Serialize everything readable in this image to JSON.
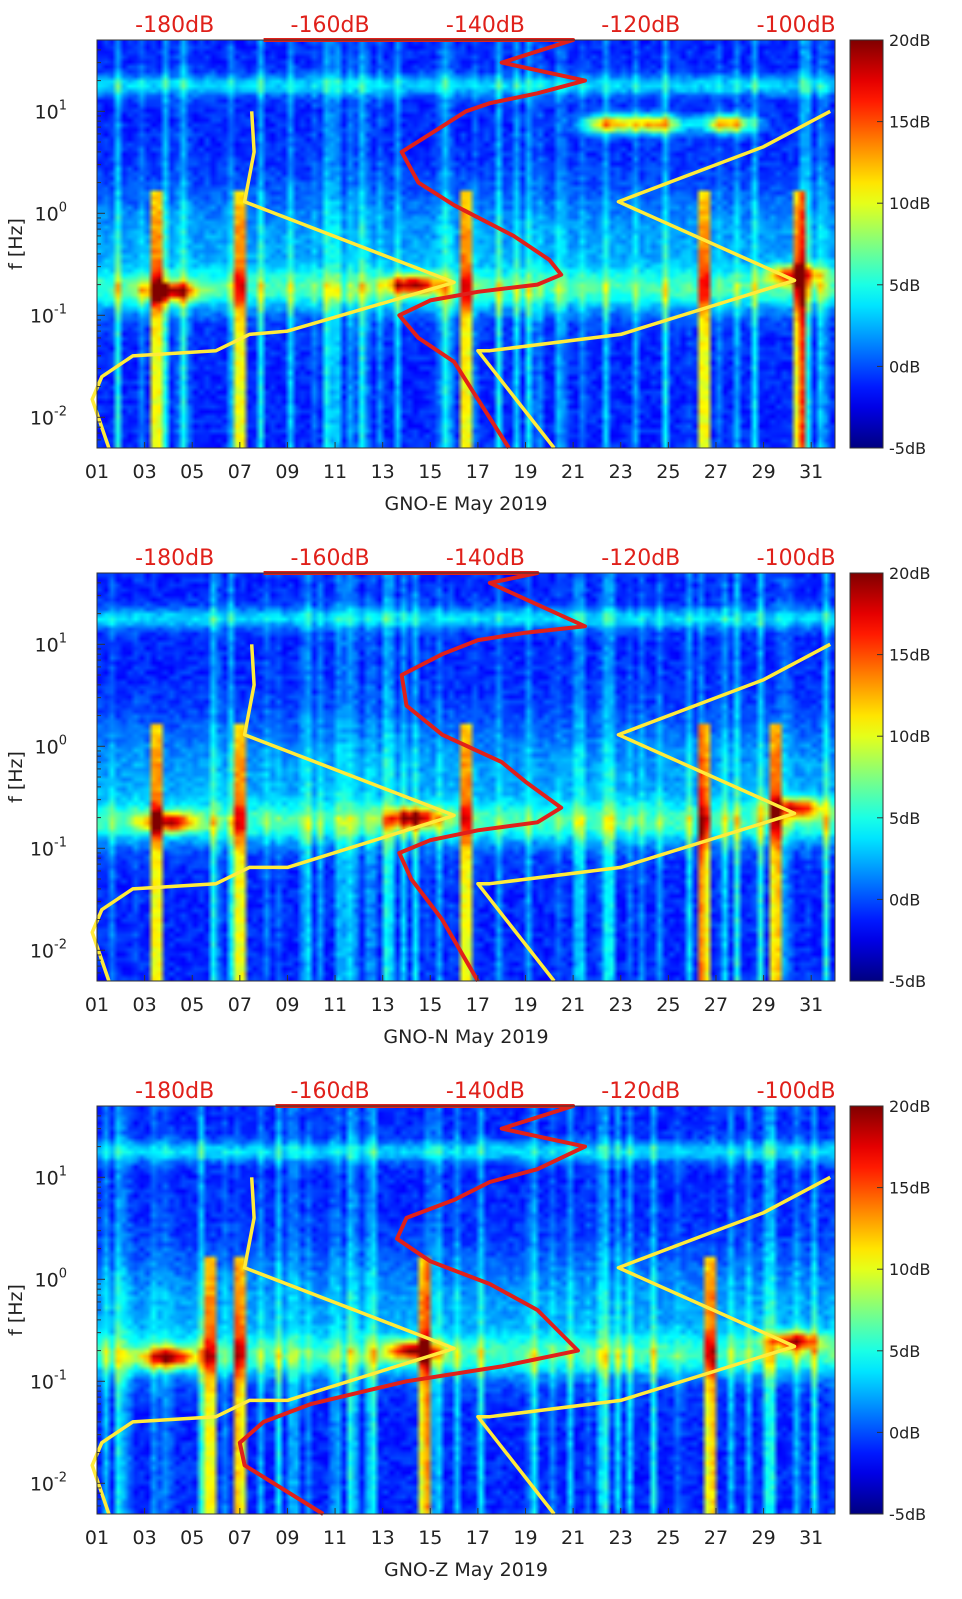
{
  "figure": {
    "colors": {
      "noise_model_line": "#ffeb3b",
      "psd_line": "#e0201a",
      "db_axis_text": "#e0201a",
      "axis_text": "#222222"
    },
    "colorbar": {
      "ticks": [
        "20dB",
        "15dB",
        "10dB",
        "5dB",
        "0dB",
        "-5dB"
      ],
      "range": [
        -5,
        20
      ],
      "colormap": "jet"
    }
  },
  "chart_data": [
    {
      "type": "heatmap",
      "title": "",
      "xlabel": "GNO-E May 2019",
      "ylabel": "f [Hz]",
      "x_ticks": [
        "01",
        "03",
        "05",
        "07",
        "09",
        "11",
        "13",
        "15",
        "17",
        "19",
        "21",
        "23",
        "25",
        "27",
        "29",
        "31"
      ],
      "x_range": [
        1,
        32
      ],
      "y_ticks": [
        "10-2",
        "10-1",
        "100",
        "101"
      ],
      "y_range_hz": [
        0.005,
        50
      ],
      "y_scale": "log",
      "top_axis_ticks": [
        "-180dB",
        "-160dB",
        "-140dB",
        "-120dB",
        "-100dB"
      ],
      "top_axis_range_db": [
        -190,
        -95
      ],
      "colorbar_label_range": [
        -5,
        20
      ],
      "spectrogram": {
        "microseism_peak_hz": 0.18,
        "high_freq_band_hz": [
          15,
          22
        ],
        "hot_spots": [
          {
            "day": 4,
            "f": 0.17
          },
          {
            "day": 14.3,
            "f": 0.2
          },
          {
            "day": 30.3,
            "f": 0.25
          },
          {
            "day": 22.5,
            "f": 7.5
          },
          {
            "day": 24.5,
            "f": 7.5
          },
          {
            "day": 27.5,
            "f": 7.5
          }
        ],
        "vertical_streak_days": [
          26.5,
          30.5,
          16.5,
          3.5,
          7
        ]
      },
      "series": [
        {
          "type": "line",
          "role": "noise-model-low",
          "points": [
            [
              7.5,
              10
            ],
            [
              7.6,
              4
            ],
            [
              7.2,
              1.3
            ],
            [
              16.0,
              0.21
            ],
            [
              9.0,
              0.07
            ],
            [
              7.4,
              0.065
            ],
            [
              6.0,
              0.045
            ],
            [
              2.5,
              0.04
            ],
            [
              1.2,
              0.025
            ],
            [
              0.8,
              0.015
            ],
            [
              1.5,
              0.005
            ]
          ]
        },
        {
          "type": "line",
          "role": "noise-model-high",
          "points": [
            [
              31.8,
              10
            ],
            [
              29.0,
              4.5
            ],
            [
              22.9,
              1.3
            ],
            [
              30.3,
              0.22
            ],
            [
              23.0,
              0.065
            ],
            [
              17.5,
              0.045
            ],
            [
              17.0,
              0.045
            ],
            [
              20.2,
              0.005
            ]
          ]
        },
        {
          "type": "line",
          "role": "psd-profile",
          "points": [
            [
              8.0,
              50
            ],
            [
              21.0,
              50
            ],
            [
              18.0,
              30
            ],
            [
              21.5,
              20
            ],
            [
              19.5,
              15
            ],
            [
              17.5,
              12
            ],
            [
              16.5,
              10
            ],
            [
              15.0,
              6
            ],
            [
              13.8,
              4
            ],
            [
              14.5,
              2
            ],
            [
              16.0,
              1.2
            ],
            [
              18.5,
              0.6
            ],
            [
              20.0,
              0.35
            ],
            [
              20.5,
              0.25
            ],
            [
              19.5,
              0.2
            ],
            [
              17.0,
              0.17
            ],
            [
              15.0,
              0.14
            ],
            [
              13.7,
              0.1
            ],
            [
              14.5,
              0.06
            ],
            [
              16.0,
              0.035
            ],
            [
              17.0,
              0.015
            ],
            [
              18.3,
              0.005
            ]
          ]
        }
      ]
    },
    {
      "type": "heatmap",
      "title": "",
      "xlabel": "GNO-N May 2019",
      "ylabel": "f [Hz]",
      "x_ticks": [
        "01",
        "03",
        "05",
        "07",
        "09",
        "11",
        "13",
        "15",
        "17",
        "19",
        "21",
        "23",
        "25",
        "27",
        "29",
        "31"
      ],
      "x_range": [
        1,
        32
      ],
      "y_ticks": [
        "10-2",
        "10-1",
        "100",
        "101"
      ],
      "y_range_hz": [
        0.005,
        50
      ],
      "y_scale": "log",
      "top_axis_ticks": [
        "-180dB",
        "-160dB",
        "-140dB",
        "-120dB",
        "-100dB"
      ],
      "top_axis_range_db": [
        -190,
        -95
      ],
      "colorbar_label_range": [
        -5,
        20
      ],
      "spectrogram": {
        "microseism_peak_hz": 0.18,
        "high_freq_band_hz": [
          15,
          22
        ],
        "hot_spots": [
          {
            "day": 4,
            "f": 0.18
          },
          {
            "day": 14.3,
            "f": 0.2
          },
          {
            "day": 30.3,
            "f": 0.25
          }
        ],
        "vertical_streak_days": [
          26.5,
          29.5,
          16.5,
          3.5,
          7
        ]
      },
      "series": [
        {
          "type": "line",
          "role": "noise-model-low",
          "points": [
            [
              7.5,
              10
            ],
            [
              7.6,
              4
            ],
            [
              7.2,
              1.3
            ],
            [
              16.0,
              0.21
            ],
            [
              9.0,
              0.065
            ],
            [
              7.4,
              0.065
            ],
            [
              6.0,
              0.045
            ],
            [
              2.5,
              0.04
            ],
            [
              1.2,
              0.025
            ],
            [
              0.8,
              0.015
            ],
            [
              1.5,
              0.005
            ]
          ]
        },
        {
          "type": "line",
          "role": "noise-model-high",
          "points": [
            [
              31.8,
              10
            ],
            [
              29.0,
              4.5
            ],
            [
              22.9,
              1.3
            ],
            [
              30.3,
              0.22
            ],
            [
              23.0,
              0.065
            ],
            [
              17.5,
              0.045
            ],
            [
              17.0,
              0.045
            ],
            [
              20.2,
              0.005
            ]
          ]
        },
        {
          "type": "line",
          "role": "psd-profile",
          "points": [
            [
              8.0,
              50
            ],
            [
              19.5,
              50
            ],
            [
              17.5,
              40
            ],
            [
              21.5,
              15
            ],
            [
              19.0,
              13
            ],
            [
              17.0,
              11
            ],
            [
              15.5,
              8
            ],
            [
              13.8,
              5
            ],
            [
              14.0,
              2.5
            ],
            [
              15.5,
              1.3
            ],
            [
              18.0,
              0.7
            ],
            [
              19.0,
              0.45
            ],
            [
              20.5,
              0.25
            ],
            [
              19.5,
              0.18
            ],
            [
              17.0,
              0.15
            ],
            [
              15.0,
              0.12
            ],
            [
              13.7,
              0.09
            ],
            [
              14.2,
              0.05
            ],
            [
              15.5,
              0.02
            ],
            [
              17.0,
              0.005
            ]
          ]
        }
      ]
    },
    {
      "type": "heatmap",
      "title": "",
      "xlabel": "GNO-Z May 2019",
      "ylabel": "f [Hz]",
      "x_ticks": [
        "01",
        "03",
        "05",
        "07",
        "09",
        "11",
        "13",
        "15",
        "17",
        "19",
        "21",
        "23",
        "25",
        "27",
        "29",
        "31"
      ],
      "x_range": [
        1,
        32
      ],
      "y_ticks": [
        "10-2",
        "10-1",
        "100",
        "101"
      ],
      "y_range_hz": [
        0.005,
        50
      ],
      "y_scale": "log",
      "top_axis_ticks": [
        "-180dB",
        "-160dB",
        "-140dB",
        "-120dB",
        "-100dB"
      ],
      "top_axis_range_db": [
        -190,
        -95
      ],
      "colorbar_label_range": [
        -5,
        20
      ],
      "spectrogram": {
        "microseism_peak_hz": 0.18,
        "high_freq_band_hz": [
          15,
          22
        ],
        "hot_spots": [
          {
            "day": 4,
            "f": 0.17
          },
          {
            "day": 14.3,
            "f": 0.2
          },
          {
            "day": 30.3,
            "f": 0.25
          }
        ],
        "vertical_streak_days": [
          5.8,
          26.8,
          14.7,
          7
        ]
      },
      "series": [
        {
          "type": "line",
          "role": "noise-model-low",
          "points": [
            [
              7.5,
              10
            ],
            [
              7.6,
              4
            ],
            [
              7.2,
              1.3
            ],
            [
              16.0,
              0.21
            ],
            [
              9.0,
              0.065
            ],
            [
              7.4,
              0.065
            ],
            [
              6.0,
              0.045
            ],
            [
              2.5,
              0.04
            ],
            [
              1.2,
              0.025
            ],
            [
              0.8,
              0.015
            ],
            [
              1.5,
              0.005
            ]
          ]
        },
        {
          "type": "line",
          "role": "noise-model-high",
          "points": [
            [
              31.8,
              10
            ],
            [
              29.0,
              4.5
            ],
            [
              22.9,
              1.3
            ],
            [
              30.3,
              0.22
            ],
            [
              23.0,
              0.065
            ],
            [
              17.5,
              0.045
            ],
            [
              17.0,
              0.045
            ],
            [
              20.2,
              0.005
            ]
          ]
        },
        {
          "type": "line",
          "role": "psd-profile",
          "points": [
            [
              8.5,
              50
            ],
            [
              21.0,
              50
            ],
            [
              18.0,
              30
            ],
            [
              21.5,
              20
            ],
            [
              19.5,
              12
            ],
            [
              17.5,
              9
            ],
            [
              16.0,
              6
            ],
            [
              14.0,
              4
            ],
            [
              13.6,
              2.5
            ],
            [
              15.0,
              1.5
            ],
            [
              17.5,
              0.9
            ],
            [
              19.5,
              0.5
            ],
            [
              21.2,
              0.2
            ],
            [
              18.0,
              0.14
            ],
            [
              14.0,
              0.1
            ],
            [
              10.0,
              0.06
            ],
            [
              8.0,
              0.04
            ],
            [
              7.0,
              0.025
            ],
            [
              7.2,
              0.015
            ],
            [
              10.5,
              0.005
            ]
          ]
        }
      ]
    }
  ]
}
